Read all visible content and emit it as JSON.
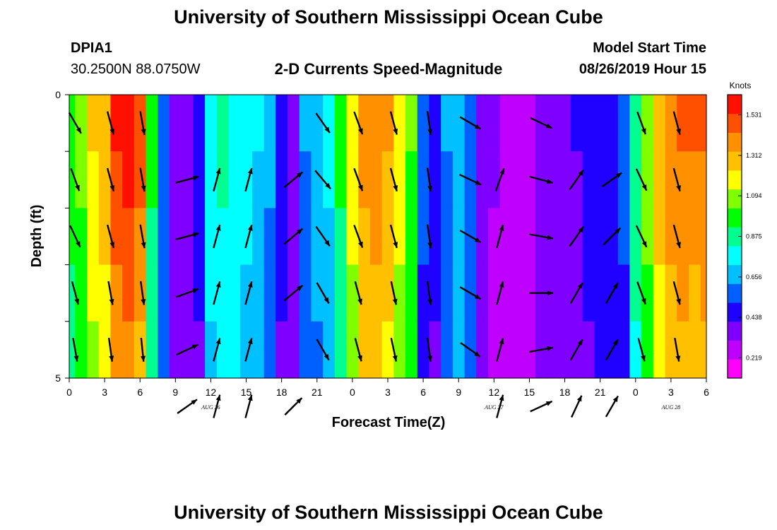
{
  "page": {
    "title_top": "University of Southern Mississippi Ocean Cube",
    "title_bottom": "University of Southern Mississippi Ocean Cube",
    "station_id": "DPIA1",
    "station_location": "30.2500N 88.0750W",
    "model_label": "Model Start Time",
    "model_start": "08/26/2019 Hour 15"
  },
  "chart_data": {
    "type": "heatmap",
    "title": "2-D Currents Speed-Magnitude",
    "xlabel": "Forecast Time(Z)",
    "ylabel": "Depth (ft)",
    "ylim": [
      0,
      5
    ],
    "y_tick_labels": [
      "0",
      "5"
    ],
    "x_tick_labels": [
      "0",
      "3",
      "6",
      "9",
      "12",
      "15",
      "18",
      "21",
      "0",
      "3",
      "6",
      "9",
      "12",
      "15",
      "18",
      "21",
      "0",
      "3",
      "6"
    ],
    "date_labels": [
      {
        "text": "AUG 26",
        "tick_index": 4
      },
      {
        "text": "AUG 27",
        "tick_index": 12
      },
      {
        "text": "AUG 28",
        "tick_index": 17
      }
    ],
    "colorbar": {
      "unit": "Knots",
      "tick_labels": [
        "0.219",
        "0.438",
        "0.656",
        "0.875",
        "1.094",
        "1.312",
        "1.531"
      ],
      "colors": [
        "#ff00ff",
        "#c000ff",
        "#8000ff",
        "#2000ff",
        "#0060ff",
        "#00c0ff",
        "#00ffff",
        "#00ff90",
        "#00ff00",
        "#80ff00",
        "#ffff00",
        "#ffc000",
        "#ff9000",
        "#ff5000",
        "#ff1000"
      ]
    },
    "legend_placement": "right",
    "time_hours": [
      0,
      1,
      2,
      3,
      4,
      5,
      6,
      7,
      8,
      9,
      10,
      11,
      12,
      13,
      14,
      15,
      16,
      17,
      18,
      19,
      20,
      21,
      22,
      23,
      24,
      25,
      26,
      27,
      28,
      29,
      30,
      31,
      32,
      33,
      34,
      35,
      36,
      37,
      38,
      39,
      40,
      41,
      42,
      43,
      44,
      45,
      46,
      47,
      48,
      49,
      50,
      51,
      52,
      53,
      54
    ],
    "speed_knots": [
      1.0,
      1.08,
      1.25,
      1.3,
      1.55,
      1.58,
      1.48,
      0.95,
      0.6,
      0.4,
      0.35,
      0.45,
      0.8,
      0.85,
      0.82,
      0.78,
      0.74,
      0.65,
      0.45,
      0.4,
      0.62,
      0.68,
      0.75,
      0.95,
      1.2,
      1.4,
      1.42,
      1.35,
      1.2,
      1.05,
      0.55,
      0.45,
      0.62,
      0.7,
      0.6,
      0.35,
      0.33,
      0.3,
      0.28,
      0.3,
      0.35,
      0.38,
      0.4,
      0.42,
      0.45,
      0.48,
      0.5,
      0.55,
      0.9,
      1.1,
      1.3,
      1.42,
      1.45,
      1.44,
      1.45
    ],
    "arrows": [
      {
        "time": 0.5,
        "row": 0,
        "dir_deg": 150
      },
      {
        "time": 3.5,
        "row": 0,
        "dir_deg": 165
      },
      {
        "time": 6.2,
        "row": 0,
        "dir_deg": 170
      },
      {
        "time": 21.5,
        "row": 0,
        "dir_deg": 145
      },
      {
        "time": 24.5,
        "row": 0,
        "dir_deg": 160
      },
      {
        "time": 27.5,
        "row": 0,
        "dir_deg": 165
      },
      {
        "time": 30.5,
        "row": 0,
        "dir_deg": 172
      },
      {
        "time": 34.0,
        "row": 0,
        "dir_deg": 120
      },
      {
        "time": 40.0,
        "row": 0,
        "dir_deg": 115
      },
      {
        "time": 48.5,
        "row": 0,
        "dir_deg": 160
      },
      {
        "time": 51.5,
        "row": 0,
        "dir_deg": 165
      },
      {
        "time": 0.5,
        "row": 1,
        "dir_deg": 160
      },
      {
        "time": 3.5,
        "row": 1,
        "dir_deg": 165
      },
      {
        "time": 6.2,
        "row": 1,
        "dir_deg": 170
      },
      {
        "time": 10.0,
        "row": 1,
        "dir_deg": 75
      },
      {
        "time": 12.5,
        "row": 1,
        "dir_deg": 15
      },
      {
        "time": 15.2,
        "row": 1,
        "dir_deg": 15
      },
      {
        "time": 19.0,
        "row": 1,
        "dir_deg": 50
      },
      {
        "time": 21.5,
        "row": 1,
        "dir_deg": 140
      },
      {
        "time": 24.5,
        "row": 1,
        "dir_deg": 160
      },
      {
        "time": 27.5,
        "row": 1,
        "dir_deg": 165
      },
      {
        "time": 30.5,
        "row": 1,
        "dir_deg": 172
      },
      {
        "time": 34.0,
        "row": 1,
        "dir_deg": 115
      },
      {
        "time": 36.5,
        "row": 1,
        "dir_deg": 20
      },
      {
        "time": 40.0,
        "row": 1,
        "dir_deg": 105
      },
      {
        "time": 43.0,
        "row": 1,
        "dir_deg": 35
      },
      {
        "time": 46.0,
        "row": 1,
        "dir_deg": 55
      },
      {
        "time": 48.5,
        "row": 1,
        "dir_deg": 155
      },
      {
        "time": 51.5,
        "row": 1,
        "dir_deg": 165
      },
      {
        "time": 0.5,
        "row": 2,
        "dir_deg": 155
      },
      {
        "time": 3.5,
        "row": 2,
        "dir_deg": 165
      },
      {
        "time": 6.2,
        "row": 2,
        "dir_deg": 170
      },
      {
        "time": 10.0,
        "row": 2,
        "dir_deg": 75
      },
      {
        "time": 12.5,
        "row": 2,
        "dir_deg": 15
      },
      {
        "time": 15.2,
        "row": 2,
        "dir_deg": 15
      },
      {
        "time": 19.0,
        "row": 2,
        "dir_deg": 50
      },
      {
        "time": 21.5,
        "row": 2,
        "dir_deg": 145
      },
      {
        "time": 24.5,
        "row": 2,
        "dir_deg": 160
      },
      {
        "time": 27.5,
        "row": 2,
        "dir_deg": 165
      },
      {
        "time": 30.5,
        "row": 2,
        "dir_deg": 172
      },
      {
        "time": 34.0,
        "row": 2,
        "dir_deg": 120
      },
      {
        "time": 36.5,
        "row": 2,
        "dir_deg": 15
      },
      {
        "time": 40.0,
        "row": 2,
        "dir_deg": 100
      },
      {
        "time": 43.0,
        "row": 2,
        "dir_deg": 35
      },
      {
        "time": 46.0,
        "row": 2,
        "dir_deg": 45
      },
      {
        "time": 48.5,
        "row": 2,
        "dir_deg": 155
      },
      {
        "time": 51.5,
        "row": 2,
        "dir_deg": 165
      },
      {
        "time": 0.5,
        "row": 3,
        "dir_deg": 165
      },
      {
        "time": 3.5,
        "row": 3,
        "dir_deg": 170
      },
      {
        "time": 6.2,
        "row": 3,
        "dir_deg": 172
      },
      {
        "time": 10.0,
        "row": 3,
        "dir_deg": 70
      },
      {
        "time": 12.5,
        "row": 3,
        "dir_deg": 15
      },
      {
        "time": 15.2,
        "row": 3,
        "dir_deg": 15
      },
      {
        "time": 19.0,
        "row": 3,
        "dir_deg": 50
      },
      {
        "time": 21.5,
        "row": 3,
        "dir_deg": 150
      },
      {
        "time": 24.5,
        "row": 3,
        "dir_deg": 165
      },
      {
        "time": 27.5,
        "row": 3,
        "dir_deg": 168
      },
      {
        "time": 30.5,
        "row": 3,
        "dir_deg": 172
      },
      {
        "time": 34.0,
        "row": 3,
        "dir_deg": 120
      },
      {
        "time": 36.5,
        "row": 3,
        "dir_deg": 15
      },
      {
        "time": 40.0,
        "row": 3,
        "dir_deg": 90
      },
      {
        "time": 43.0,
        "row": 3,
        "dir_deg": 30
      },
      {
        "time": 46.0,
        "row": 3,
        "dir_deg": 30
      },
      {
        "time": 48.5,
        "row": 3,
        "dir_deg": 160
      },
      {
        "time": 51.5,
        "row": 3,
        "dir_deg": 165
      },
      {
        "time": 0.5,
        "row": 4,
        "dir_deg": 170
      },
      {
        "time": 3.5,
        "row": 4,
        "dir_deg": 172
      },
      {
        "time": 6.2,
        "row": 4,
        "dir_deg": 174
      },
      {
        "time": 10.0,
        "row": 4,
        "dir_deg": 65
      },
      {
        "time": 12.5,
        "row": 4,
        "dir_deg": 15
      },
      {
        "time": 15.2,
        "row": 4,
        "dir_deg": 15
      },
      {
        "time": 21.5,
        "row": 4,
        "dir_deg": 150
      },
      {
        "time": 24.5,
        "row": 4,
        "dir_deg": 165
      },
      {
        "time": 27.5,
        "row": 4,
        "dir_deg": 168
      },
      {
        "time": 30.5,
        "row": 4,
        "dir_deg": 172
      },
      {
        "time": 34.0,
        "row": 4,
        "dir_deg": 125
      },
      {
        "time": 36.5,
        "row": 4,
        "dir_deg": 15
      },
      {
        "time": 40.0,
        "row": 4,
        "dir_deg": 80
      },
      {
        "time": 43.0,
        "row": 4,
        "dir_deg": 30
      },
      {
        "time": 46.0,
        "row": 4,
        "dir_deg": 30
      },
      {
        "time": 48.5,
        "row": 4,
        "dir_deg": 165
      },
      {
        "time": 51.5,
        "row": 4,
        "dir_deg": 170
      },
      {
        "time": 10.0,
        "row": 5,
        "dir_deg": 55
      },
      {
        "time": 12.5,
        "row": 5,
        "dir_deg": 15
      },
      {
        "time": 15.2,
        "row": 5,
        "dir_deg": 15
      },
      {
        "time": 19.0,
        "row": 5,
        "dir_deg": 45
      },
      {
        "time": 36.5,
        "row": 5,
        "dir_deg": 15
      },
      {
        "time": 40.0,
        "row": 5,
        "dir_deg": 65
      },
      {
        "time": 43.0,
        "row": 5,
        "dir_deg": 25
      },
      {
        "time": 46.0,
        "row": 5,
        "dir_deg": 30
      }
    ]
  }
}
